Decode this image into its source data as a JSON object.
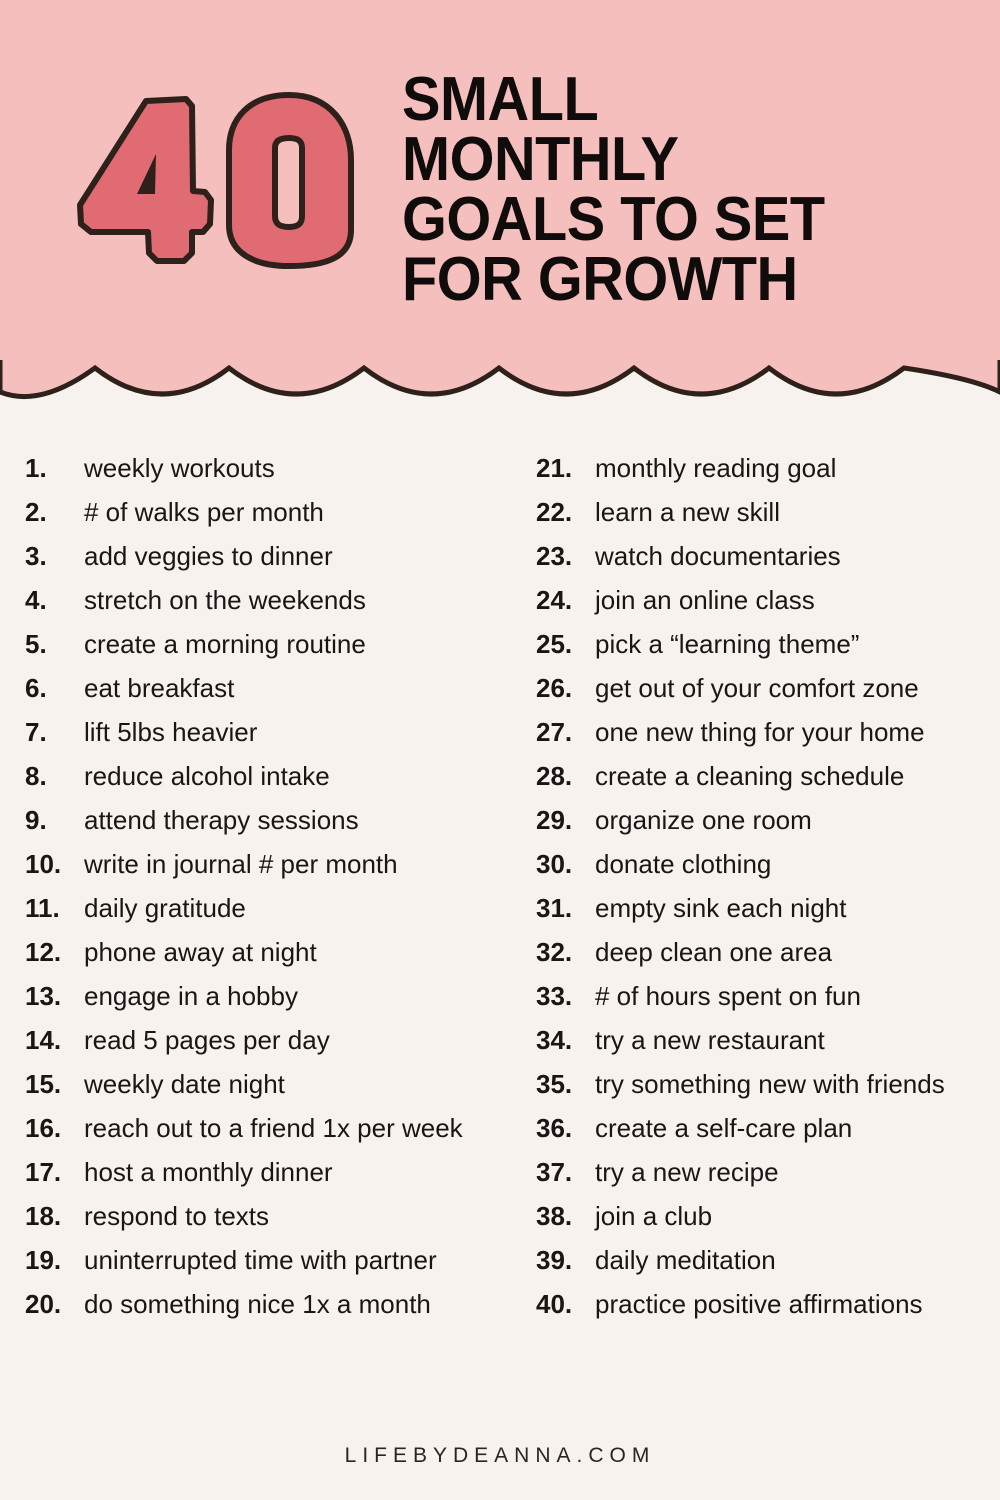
{
  "header": {
    "number": "40",
    "title_lines": [
      "SMALL",
      "MONTHLY",
      "GOALS TO SET",
      "FOR GROWTH"
    ]
  },
  "colors": {
    "band": "#f5bfbd",
    "numeral": "#e06b72",
    "outline": "#2e201a",
    "background": "#f7f2ee"
  },
  "goals": [
    "weekly workouts",
    "# of walks per month",
    "add veggies to dinner",
    "stretch on the weekends",
    "create a morning routine",
    "eat breakfast",
    "lift 5lbs heavier",
    "reduce alcohol intake",
    "attend therapy sessions",
    "write in journal # per month",
    "daily gratitude",
    "phone away at night",
    "engage in a hobby",
    "read 5 pages per day",
    "weekly date night",
    "reach out to a friend 1x per week",
    "host a monthly dinner",
    "respond to texts",
    "uninterrupted time with partner",
    "do something nice 1x a month",
    "monthly reading goal",
    "learn a new skill",
    "watch documentaries",
    "join an online class",
    "pick a “learning theme”",
    "get out of your comfort zone",
    "one new thing for your home",
    "create a cleaning schedule",
    "organize one room",
    "donate clothing",
    "empty sink each night",
    "deep clean one area",
    "# of hours spent on fun",
    "try a new restaurant",
    "try something new with friends",
    "create a self-care plan",
    "try a new recipe",
    "join a club",
    "daily meditation",
    "practice positive affirmations"
  ],
  "numbers": [
    "1.",
    "2.",
    "3.",
    "4.",
    "5.",
    "6.",
    "7.",
    "8.",
    "9.",
    "10.",
    "11.",
    "12.",
    "13.",
    "14.",
    "15.",
    "16.",
    "17.",
    "18.",
    "19.",
    "20.",
    "21.",
    "22.",
    "23.",
    "24.",
    "25.",
    "26.",
    "27.",
    "28.",
    "29.",
    "30.",
    "31.",
    "32.",
    "33.",
    "34.",
    "35.",
    "36.",
    "37.",
    "38.",
    "39.",
    "40."
  ],
  "footer": "LIFEBYDEANNA.COM"
}
